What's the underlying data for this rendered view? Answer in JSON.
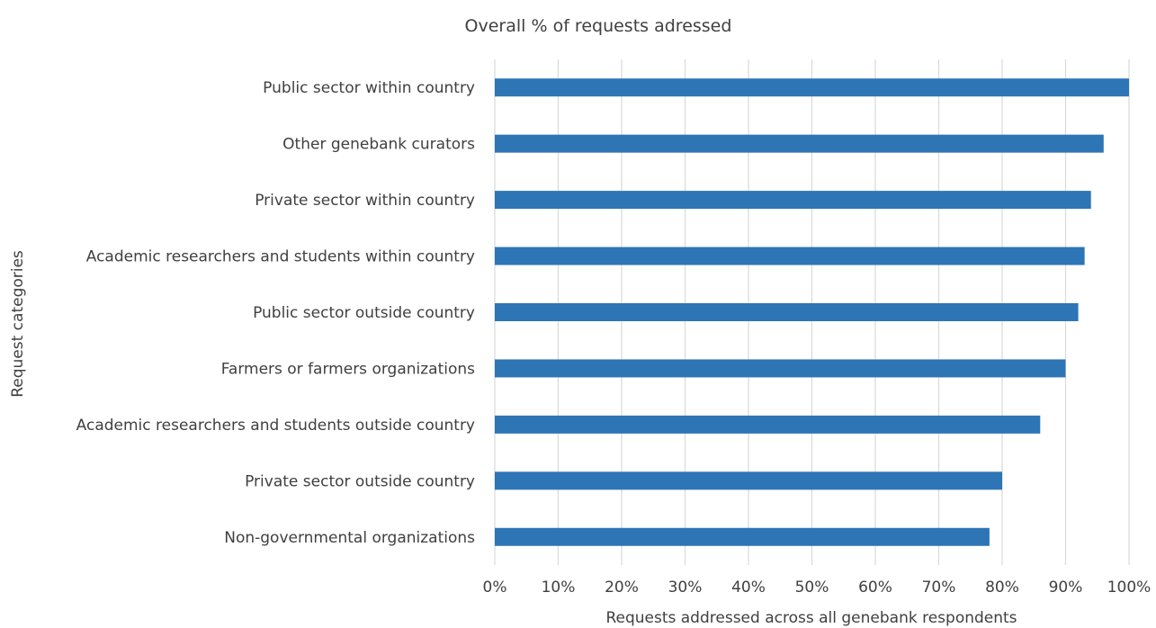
{
  "chart_data": {
    "type": "bar",
    "orientation": "horizontal",
    "title": "Overall % of requests adressed",
    "xlabel": "Requests addressed across all genebank respondents",
    "ylabel": "Request categories",
    "xlim": [
      0,
      100
    ],
    "x_ticks": [
      "0%",
      "10%",
      "20%",
      "30%",
      "40%",
      "50%",
      "60%",
      "70%",
      "80%",
      "90%",
      "100%"
    ],
    "grid": "vertical",
    "legend": "none",
    "bar_color": "#2E75B6",
    "categories": [
      "Public sector within country",
      "Other genebank curators",
      "Private sector within country",
      "Academic researchers and students within country",
      "Public sector outside country",
      "Farmers or farmers organizations",
      "Academic researchers and students outside country",
      "Private sector outside country",
      "Non-governmental organizations"
    ],
    "values": [
      100,
      96,
      94,
      93,
      92,
      90,
      86,
      80,
      78
    ]
  }
}
